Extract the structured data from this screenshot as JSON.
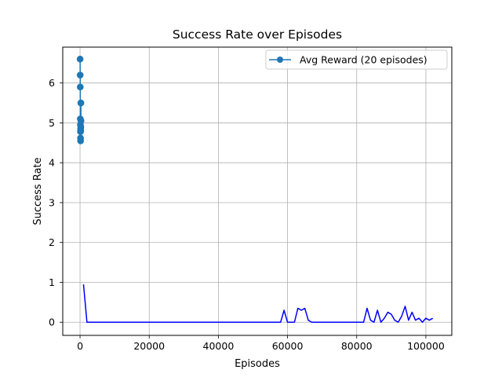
{
  "chart_data": {
    "type": "line",
    "title": "Success Rate over Episodes",
    "xlabel": "Episodes",
    "ylabel": "Success Rate",
    "xlim": [
      -5000,
      107500
    ],
    "ylim": [
      -0.33,
      6.9
    ],
    "xticks": [
      0,
      20000,
      40000,
      60000,
      80000,
      100000
    ],
    "xtick_labels": [
      "0",
      "20000",
      "40000",
      "60000",
      "80000",
      "100000"
    ],
    "yticks": [
      0,
      1,
      2,
      3,
      4,
      5,
      6
    ],
    "ytick_labels": [
      "0",
      "1",
      "2",
      "3",
      "4",
      "5",
      "6"
    ],
    "grid": true,
    "legend": {
      "placement": "top-right",
      "entries": [
        "Avg Reward (20 episodes)"
      ]
    },
    "series": [
      {
        "name": "Avg Reward (20 episodes)",
        "color": "#1f77b4",
        "marker": "circle",
        "x": [
          20,
          40,
          60,
          80,
          100,
          120,
          140,
          160,
          180,
          200,
          220,
          240,
          260
        ],
        "y": [
          6.6,
          6.2,
          5.9,
          5.1,
          4.95,
          4.78,
          4.62,
          4.55,
          4.85,
          4.8,
          4.9,
          5.5,
          5.05
        ]
      },
      {
        "color": "#0000ff",
        "marker": "none",
        "x": [
          1000,
          2000,
          4000,
          10000,
          20000,
          30000,
          40000,
          50000,
          58000,
          59000,
          60000,
          62000,
          63000,
          64000,
          65000,
          66000,
          67000,
          70000,
          75000,
          80000,
          82000,
          83000,
          84000,
          85000,
          86000,
          87000,
          88000,
          89000,
          90000,
          91000,
          92000,
          93000,
          94000,
          95000,
          96000,
          97000,
          98000,
          99000,
          100000,
          101000,
          102000
        ],
        "y": [
          0.95,
          0,
          0,
          0,
          0,
          0,
          0,
          0,
          0,
          0.3,
          0,
          0,
          0.35,
          0.3,
          0.35,
          0.05,
          0,
          0,
          0,
          0,
          0,
          0.35,
          0.05,
          0,
          0.3,
          0,
          0.1,
          0.25,
          0.2,
          0.05,
          0,
          0.15,
          0.4,
          0.05,
          0.25,
          0.05,
          0.1,
          0,
          0.1,
          0.05,
          0.1
        ]
      }
    ]
  }
}
